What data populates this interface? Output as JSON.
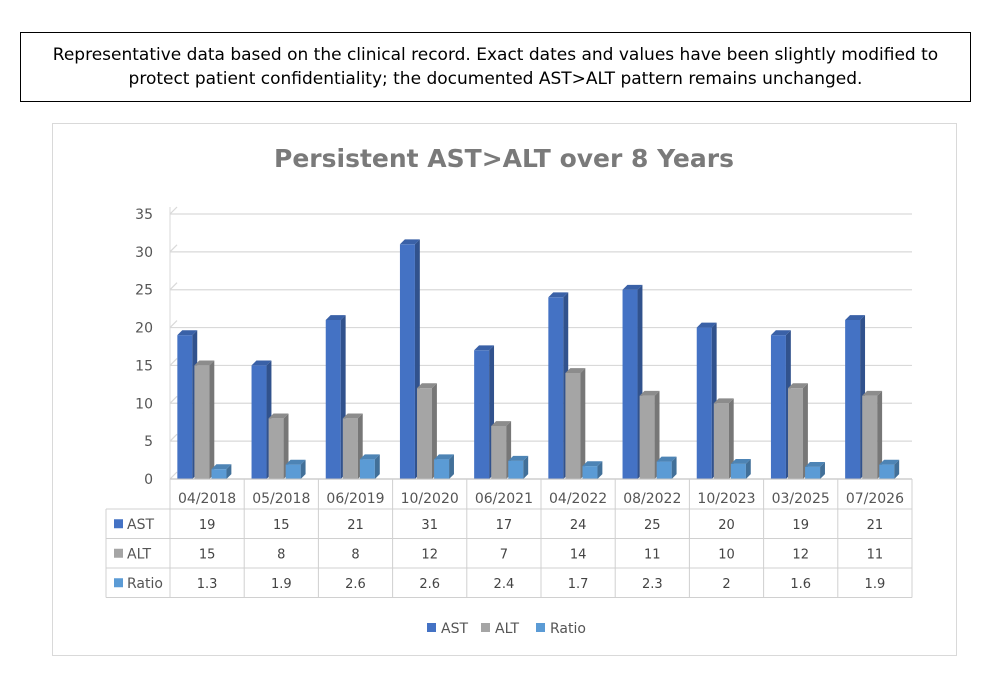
{
  "note": {
    "text": "Representative data based on the clinical record. Exact dates and values have been slightly modified to protect patient confidentiality; the documented AST>ALT pattern remains unchanged."
  },
  "chart_data": {
    "type": "bar",
    "title": "Persistent AST>ALT over 8 Years",
    "categories": [
      "04/2018",
      "05/2018",
      "06/2019",
      "10/2020",
      "06/2021",
      "04/2022",
      "08/2022",
      "10/2023",
      "03/2025",
      "07/2026"
    ],
    "series": [
      {
        "name": "AST",
        "values": [
          19,
          15,
          21,
          31,
          17,
          24,
          25,
          20,
          19,
          21
        ],
        "color": "#4472c4"
      },
      {
        "name": "ALT",
        "values": [
          15,
          8,
          8,
          12,
          7,
          14,
          11,
          10,
          12,
          11
        ],
        "color": "#a5a5a5"
      },
      {
        "name": "Ratio",
        "values": [
          1.3,
          1.9,
          2.6,
          2.6,
          2.4,
          1.7,
          2.3,
          2,
          1.6,
          1.9
        ],
        "color": "#5b9bd5"
      }
    ],
    "yticks": [
      0,
      5,
      10,
      15,
      20,
      25,
      30,
      35
    ],
    "ylim": [
      0,
      35
    ],
    "grid": true,
    "legend": "bottom",
    "data_table": true
  }
}
